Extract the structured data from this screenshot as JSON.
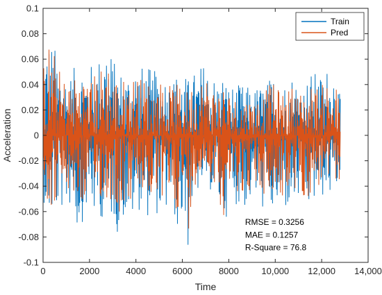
{
  "chart_data": {
    "type": "line",
    "title": "",
    "xlabel": "Time",
    "ylabel": "Acceleration",
    "xlim": [
      0,
      14000
    ],
    "ylim": [
      -0.1,
      0.1
    ],
    "x_ticks": [
      0,
      2000,
      4000,
      6000,
      8000,
      10000,
      12000,
      14000
    ],
    "x_tick_labels": [
      "0",
      "2000",
      "4000",
      "6000",
      "8000",
      "10,000",
      "12,000",
      "14,000"
    ],
    "y_ticks": [
      0.1,
      0.08,
      0.06,
      0.04,
      0.02,
      0,
      -0.02,
      -0.04,
      -0.06,
      -0.08,
      -0.1
    ],
    "y_tick_labels": [
      "0.1",
      "0.08",
      "0.06",
      "0.04",
      "0.02",
      "0",
      "-0.02",
      "-0.04",
      "-0.06",
      "-0.08",
      "-0.1"
    ],
    "grid": false,
    "legend_position": "top-right",
    "series": [
      {
        "name": "Train",
        "color": "#0072BD",
        "x": [
          0,
          250,
          500,
          750,
          1000,
          1250,
          1500,
          1750,
          2000,
          2250,
          2500,
          2750,
          3000,
          3250,
          3500,
          3750,
          4000,
          4250,
          4500,
          4750,
          5000,
          5250,
          5500,
          5750,
          6000,
          6250,
          6500,
          6750,
          7000,
          7250,
          7500,
          7750,
          8000,
          8250,
          8500,
          8750,
          9000,
          9250,
          9500,
          9750,
          10000,
          10250,
          10500,
          10750,
          11000,
          11250,
          11500,
          11750,
          12000,
          12250,
          12500,
          12800
        ],
        "y_max": [
          0.075,
          0.08,
          0.07,
          0.062,
          0.05,
          0.05,
          0.06,
          0.06,
          0.055,
          0.06,
          0.065,
          0.085,
          0.06,
          0.055,
          0.05,
          0.055,
          0.06,
          0.055,
          0.055,
          0.05,
          0.055,
          0.05,
          0.045,
          0.05,
          0.05,
          0.045,
          0.05,
          0.055,
          0.06,
          0.05,
          0.045,
          0.05,
          0.04,
          0.04,
          0.04,
          0.04,
          0.035,
          0.04,
          0.04,
          0.045,
          0.05,
          0.04,
          0.045,
          0.05,
          0.045,
          0.04,
          0.05,
          0.05,
          0.048,
          0.055,
          0.06,
          0.03
        ],
        "y_min": [
          -0.05,
          -0.07,
          -0.065,
          -0.06,
          -0.06,
          -0.055,
          -0.08,
          -0.065,
          -0.055,
          -0.07,
          -0.065,
          -0.075,
          -0.065,
          -0.08,
          -0.065,
          -0.07,
          -0.065,
          -0.055,
          -0.065,
          -0.06,
          -0.065,
          -0.065,
          -0.055,
          -0.075,
          -0.07,
          -0.092,
          -0.05,
          -0.045,
          -0.04,
          -0.045,
          -0.055,
          -0.07,
          -0.06,
          -0.055,
          -0.055,
          -0.06,
          -0.05,
          -0.055,
          -0.06,
          -0.07,
          -0.06,
          -0.065,
          -0.06,
          -0.06,
          -0.055,
          -0.06,
          -0.06,
          -0.055,
          -0.05,
          -0.05,
          -0.048,
          -0.04
        ]
      },
      {
        "name": "Pred",
        "color": "#D95319",
        "x": [
          0,
          250,
          500,
          750,
          1000,
          1250,
          1500,
          1750,
          2000,
          2250,
          2500,
          2750,
          3000,
          3250,
          3500,
          3750,
          4000,
          4250,
          4500,
          4750,
          5000,
          5250,
          5500,
          5750,
          6000,
          6250,
          6500,
          6750,
          7000,
          7250,
          7500,
          7750,
          8000,
          8250,
          8500,
          8750,
          9000,
          9250,
          9500,
          9750,
          10000,
          10250,
          10500,
          10750,
          11000,
          11250,
          11500,
          11750,
          12000,
          12250,
          12500,
          12800
        ],
        "y_max": [
          0.06,
          0.075,
          0.065,
          0.05,
          0.045,
          0.045,
          0.05,
          0.05,
          0.045,
          0.05,
          0.055,
          0.065,
          0.05,
          0.045,
          0.045,
          0.045,
          0.05,
          0.045,
          0.045,
          0.04,
          0.045,
          0.04,
          0.04,
          0.04,
          0.04,
          0.035,
          0.045,
          0.045,
          0.05,
          0.04,
          0.04,
          0.04,
          0.035,
          0.03,
          0.03,
          0.03,
          0.03,
          0.03,
          0.035,
          0.04,
          0.04,
          0.035,
          0.035,
          0.04,
          0.035,
          0.035,
          0.04,
          0.04,
          0.04,
          0.045,
          0.05,
          0.025
        ],
        "y_min": [
          -0.04,
          -0.06,
          -0.055,
          -0.05,
          -0.05,
          -0.045,
          -0.06,
          -0.055,
          -0.045,
          -0.055,
          -0.05,
          -0.06,
          -0.05,
          -0.065,
          -0.055,
          -0.055,
          -0.05,
          -0.045,
          -0.055,
          -0.05,
          -0.05,
          -0.055,
          -0.045,
          -0.06,
          -0.055,
          -0.078,
          -0.04,
          -0.035,
          -0.03,
          -0.035,
          -0.045,
          -0.065,
          -0.05,
          -0.045,
          -0.045,
          -0.05,
          -0.04,
          -0.045,
          -0.05,
          -0.055,
          -0.05,
          -0.05,
          -0.05,
          -0.05,
          -0.045,
          -0.05,
          -0.05,
          -0.045,
          -0.04,
          -0.04,
          -0.04,
          -0.035
        ]
      }
    ],
    "annotations": [
      {
        "text": "RMSE = 0.3256",
        "x": 8700,
        "y": -0.0705
      },
      {
        "text": "MAE = 0.1257",
        "x": 8700,
        "y": -0.0805
      },
      {
        "text": "R-Square = 76.8",
        "x": 8700,
        "y": -0.0905
      }
    ]
  }
}
